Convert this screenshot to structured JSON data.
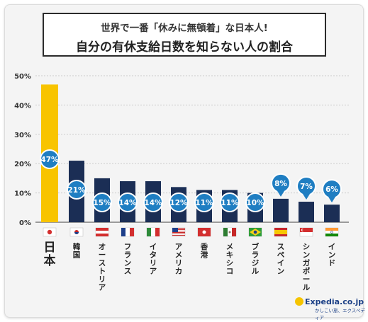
{
  "title": {
    "line1": "世界で一番「休みに無頓着」な日本人!",
    "line2": "自分の有休支給日数を知らない人の割合"
  },
  "logo": {
    "brand": "Expedia.co.jp",
    "tagline": "かしこい旅、エクスペディア"
  },
  "colors": {
    "japan_bar": "#f8c400",
    "other_bar": "#1b2e55",
    "bubble": "#1f7ec2"
  },
  "chart_data": {
    "type": "bar",
    "categories": [
      "日本",
      "韓国",
      "オーストリア",
      "フランス",
      "イタリア",
      "アメリカ",
      "香港",
      "メキシコ",
      "ブラジル",
      "スペイン",
      "シンガポール",
      "インド"
    ],
    "values": [
      47,
      21,
      15,
      14,
      14,
      12,
      11,
      11,
      10,
      8,
      7,
      6
    ],
    "data_labels": [
      "47%",
      "21%",
      "15%",
      "14%",
      "14%",
      "12%",
      "11%",
      "11%",
      "10%",
      "8%",
      "7%",
      "6%"
    ],
    "flags": [
      "japan-flag",
      "south-korea-flag",
      "austria-flag",
      "france-flag",
      "italy-flag",
      "usa-flag",
      "hong-kong-flag",
      "mexico-flag",
      "brazil-flag",
      "spain-flag",
      "singapore-flag",
      "india-flag"
    ],
    "yticks": [
      "0%",
      "10%",
      "20%",
      "30%",
      "40%",
      "50%"
    ],
    "ylim": [
      0,
      50
    ],
    "grid": true
  }
}
